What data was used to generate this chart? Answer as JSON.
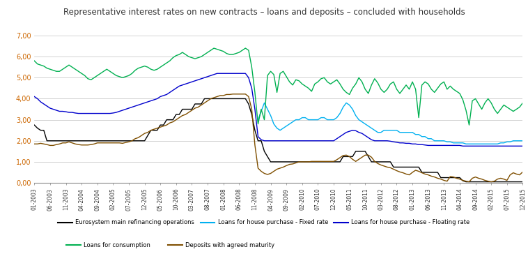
{
  "title": "Representative interest rates on new contracts – loans and deposits – concluded with households",
  "title_fontsize": 8.5,
  "ylim": [
    0,
    7.0
  ],
  "yticks": [
    0.0,
    1.0,
    2.0,
    3.0,
    4.0,
    5.0,
    6.0,
    7.0
  ],
  "ytick_labels": [
    "0,00",
    "1,00",
    "2,00",
    "3,00",
    "4,00",
    "5,00",
    "6,00",
    "7,00"
  ],
  "background_color": "#ffffff",
  "grid_color": "#c0c0c0",
  "series": {
    "eurosystem": {
      "label": "Eurosystem main refinancing operations",
      "color": "#000000",
      "linewidth": 1.0
    },
    "fixed_rate": {
      "label": "Loans for house purchase - Fixed rate",
      "color": "#00b0f0",
      "linewidth": 1.0
    },
    "floating_rate": {
      "label": "Loans for house purchase - Floating rate",
      "color": "#0000cc",
      "linewidth": 1.0
    },
    "consumption": {
      "label": "Loans for consumption",
      "color": "#00b050",
      "linewidth": 1.0
    },
    "deposits": {
      "label": "Deposits with agreed maturity",
      "color": "#7f4f00",
      "linewidth": 1.0
    }
  },
  "x_tick_labels": [
    "01-2003",
    "06-2003",
    "11-2003",
    "04-2004",
    "09-2004",
    "02-2005",
    "07-2005",
    "12-2005",
    "05-2006",
    "10-2006",
    "03-2007",
    "08-2007",
    "01-2008",
    "06-2008",
    "11-2008",
    "04-2009",
    "09-2009",
    "02-2010",
    "07-2010",
    "12-2010",
    "05-2011",
    "10-2011",
    "03-2012",
    "08-2012",
    "01-2013",
    "06-2013",
    "11-2013",
    "04-2014",
    "09-2014",
    "02-2015",
    "07-2015",
    "12-2015"
  ],
  "legend_row1": [
    "Eurosystem main refinancing operations",
    "Loans for house purchase - Fixed rate",
    "Loans for house purchase - Floating rate"
  ],
  "legend_row2": [
    "Loans for consumption",
    "Deposits with agreed maturity"
  ]
}
